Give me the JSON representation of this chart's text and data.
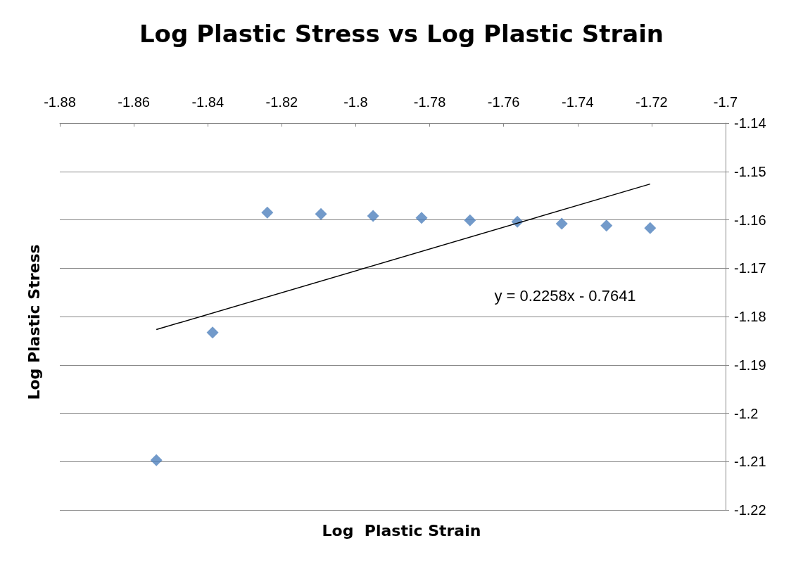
{
  "chart_data": {
    "type": "scatter",
    "title": "Log Plastic Stress vs Log Plastic Strain",
    "xlabel": "Log  Plastic Strain",
    "ylabel": "Log Plastic Stress",
    "x": [
      -1.8539,
      -1.8387,
      -1.8239,
      -1.8094,
      -1.7953,
      -1.7822,
      -1.7691,
      -1.7563,
      -1.7443,
      -1.7322,
      -1.7204
    ],
    "series": [
      {
        "color": "#4f81bd",
        "marker": "diamond",
        "values": [
          -1.2097,
          -1.1833,
          -1.1585,
          -1.1588,
          -1.1592,
          -1.1596,
          -1.1601,
          -1.1604,
          -1.1608,
          -1.1612,
          -1.1617
        ]
      },
      {
        "type": "line",
        "color": "#000000",
        "x": [
          -1.8539,
          -1.7204
        ],
        "values": [
          -1.1827,
          -1.1526
        ]
      }
    ],
    "annotations": [
      "y = 0.2258x - 0.7641"
    ],
    "xlim": [
      -1.88,
      -1.7
    ],
    "xticks": [
      -1.88,
      -1.86,
      -1.84,
      -1.82,
      -1.8,
      -1.78,
      -1.76,
      -1.74,
      -1.72,
      -1.7
    ],
    "ylim": [
      -1.22,
      -1.14
    ],
    "yticks": [
      -1.22,
      -1.21,
      -1.2,
      -1.19,
      -1.18,
      -1.17,
      -1.16,
      -1.15,
      -1.14
    ],
    "grid": "y"
  }
}
